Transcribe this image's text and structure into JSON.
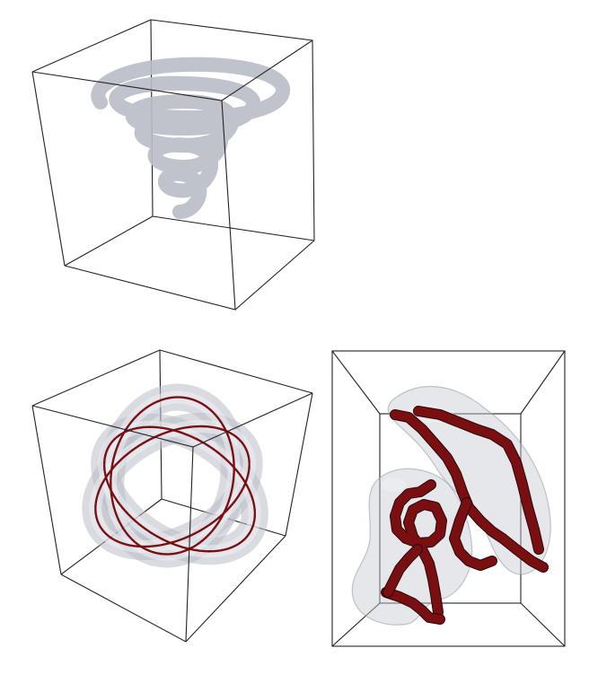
{
  "figure": {
    "panels": [
      {
        "id": "panel-helix",
        "shape": "conical-spiral"
      },
      {
        "id": "panel-trefoil",
        "shape": "interlocked-rings"
      },
      {
        "id": "panel-curves",
        "shape": "voxel-curves"
      }
    ],
    "colors": {
      "frame_edge": "#222222",
      "tube_surface": "#b9bec6",
      "centerline": "#7a0f12",
      "background": "#ffffff"
    }
  }
}
